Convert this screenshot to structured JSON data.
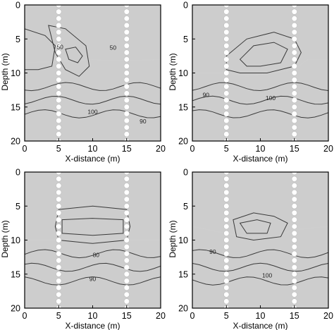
{
  "chart_data": [
    {
      "type": "heatmap",
      "panel": "top-left",
      "xlabel": "X-distance (m)",
      "ylabel": "Depth (m)",
      "xlim": [
        0,
        20
      ],
      "ylim": [
        0,
        20
      ],
      "y_inverted": true,
      "x_ticks": [
        "0",
        "5",
        "10",
        "15",
        "20"
      ],
      "y_ticks": [
        "0",
        "5",
        "10",
        "15",
        "20"
      ],
      "boreholes_x": [
        5,
        15
      ],
      "contour_labels": [
        {
          "text": "50",
          "x": 5.2,
          "y": 6.5
        },
        {
          "text": "50",
          "x": 13.0,
          "y": 6.6
        },
        {
          "text": "100",
          "x": 10.0,
          "y": 16.0
        },
        {
          "text": "90",
          "x": 17.4,
          "y": 17.4
        }
      ],
      "levels": [
        {
          "role": "upper",
          "tone": "#8f8f8f",
          "points": [
            [
              0,
              0
            ],
            [
              20,
              0
            ],
            [
              20,
              8
            ],
            [
              15,
              8.2
            ],
            [
              12,
              8.2
            ],
            [
              10,
              8
            ],
            [
              5,
              8.3
            ],
            [
              0,
              8.5
            ]
          ]
        },
        {
          "role": "low",
          "tone": "#5c5c5c",
          "points": [
            [
              0,
              3.5
            ],
            [
              3,
              4.5
            ],
            [
              4.5,
              6
            ],
            [
              4,
              9
            ],
            [
              2,
              9.5
            ],
            [
              0,
              9.5
            ]
          ]
        },
        {
          "role": "low",
          "tone": "#6d6d6d",
          "points": [
            [
              3.5,
              3
            ],
            [
              6,
              3.5
            ],
            [
              9,
              6
            ],
            [
              9.5,
              9
            ],
            [
              8,
              10.5
            ],
            [
              6,
              9.5
            ],
            [
              4.5,
              7
            ]
          ]
        },
        {
          "role": "min",
          "tone": "#1e1e1e",
          "points": [
            [
              6,
              6.5
            ],
            [
              7.5,
              6.2
            ],
            [
              8.5,
              7.5
            ],
            [
              7.8,
              8.5
            ],
            [
              6.5,
              8
            ]
          ]
        }
      ]
    },
    {
      "type": "heatmap",
      "panel": "top-right",
      "xlabel": "X-distance (m)",
      "ylabel": "Depth (m)",
      "xlim": [
        0,
        20
      ],
      "ylim": [
        0,
        20
      ],
      "y_inverted": true,
      "x_ticks": [
        "0",
        "5",
        "10",
        "15",
        "20"
      ],
      "y_ticks": [
        "0",
        "5",
        "10",
        "15",
        "20"
      ],
      "boreholes_x": [
        5,
        15
      ],
      "contour_labels": [
        {
          "text": "90",
          "x": 2.0,
          "y": 13.5
        },
        {
          "text": "100",
          "x": 11.5,
          "y": 14.0
        }
      ],
      "levels": [
        {
          "role": "upper",
          "tone": "#8f8f8f",
          "points": [
            [
              0,
              0
            ],
            [
              20,
              0
            ],
            [
              20,
              8
            ],
            [
              17,
              8
            ],
            [
              15,
              9.5
            ],
            [
              12,
              10
            ],
            [
              8,
              10.5
            ],
            [
              5,
              10
            ],
            [
              0,
              10
            ]
          ]
        },
        {
          "role": "low",
          "tone": "#6a6a6a",
          "points": [
            [
              5,
              7.5
            ],
            [
              8,
              5
            ],
            [
              12,
              4
            ],
            [
              15,
              5
            ],
            [
              16,
              7
            ],
            [
              15,
              9
            ],
            [
              11,
              10
            ],
            [
              7,
              10
            ],
            [
              5,
              9.5
            ]
          ]
        },
        {
          "role": "min",
          "tone": "#1e1e1e",
          "points": [
            [
              7,
              8
            ],
            [
              9,
              6
            ],
            [
              12,
              5.5
            ],
            [
              14,
              6.5
            ],
            [
              13,
              8.5
            ],
            [
              10,
              9
            ],
            [
              8,
              9
            ]
          ]
        }
      ]
    },
    {
      "type": "heatmap",
      "panel": "bottom-left",
      "xlabel": "X-distance (m)",
      "ylabel": "Depth (m)",
      "xlim": [
        0,
        20
      ],
      "ylim": [
        0,
        20
      ],
      "y_inverted": true,
      "x_ticks": [
        "0",
        "5",
        "10",
        "15",
        "20"
      ],
      "y_ticks": [
        "0",
        "5",
        "10",
        "15",
        "20"
      ],
      "boreholes_x": [
        5,
        15
      ],
      "contour_labels": [
        {
          "text": "80",
          "x": 10.5,
          "y": 12.5
        },
        {
          "text": "90",
          "x": 10.0,
          "y": 16.0
        }
      ],
      "levels": [
        {
          "role": "upper",
          "tone": "#8f8f8f",
          "points": [
            [
              0,
              0
            ],
            [
              20,
              0
            ],
            [
              20,
              10
            ],
            [
              15,
              10
            ],
            [
              10,
              10
            ],
            [
              5,
              10
            ],
            [
              0,
              10
            ]
          ]
        },
        {
          "role": "low",
          "tone": "#6a6a6a",
          "points": [
            [
              5,
              5.5
            ],
            [
              10,
              5
            ],
            [
              15,
              5.5
            ],
            [
              15.5,
              8
            ],
            [
              15,
              10
            ],
            [
              10,
              10.5
            ],
            [
              5,
              10
            ],
            [
              4.5,
              8
            ]
          ]
        },
        {
          "role": "min",
          "tone": "#141414",
          "points": [
            [
              5.5,
              7
            ],
            [
              10,
              6.8
            ],
            [
              14.5,
              7
            ],
            [
              14.5,
              9
            ],
            [
              10,
              9.3
            ],
            [
              5.5,
              9
            ]
          ]
        }
      ]
    },
    {
      "type": "heatmap",
      "panel": "bottom-right",
      "xlabel": "X-distance (m)",
      "ylabel": "Depth (m)",
      "xlim": [
        0,
        20
      ],
      "ylim": [
        0,
        20
      ],
      "y_inverted": true,
      "x_ticks": [
        "0",
        "5",
        "10",
        "15",
        "20"
      ],
      "y_ticks": [
        "0",
        "5",
        "10",
        "15",
        "20"
      ],
      "boreholes_x": [
        5,
        15
      ],
      "contour_labels": [
        {
          "text": "90",
          "x": 3.0,
          "y": 12.0
        },
        {
          "text": "100",
          "x": 11.0,
          "y": 15.5
        }
      ],
      "levels": [
        {
          "role": "upper",
          "tone": "#8f8f8f",
          "points": [
            [
              0,
              0
            ],
            [
              20,
              0
            ],
            [
              20,
              8
            ],
            [
              15,
              8.5
            ],
            [
              12,
              9.5
            ],
            [
              8,
              9.5
            ],
            [
              5,
              9
            ],
            [
              0,
              8
            ]
          ]
        },
        {
          "role": "low",
          "tone": "#6a6a6a",
          "points": [
            [
              6,
              7
            ],
            [
              9,
              6
            ],
            [
              12,
              6.5
            ],
            [
              14,
              7.5
            ],
            [
              13,
              9.5
            ],
            [
              9,
              10
            ],
            [
              6.5,
              9.5
            ]
          ]
        },
        {
          "role": "min",
          "tone": "#1e1e1e",
          "points": [
            [
              7,
              7.5
            ],
            [
              9.5,
              7
            ],
            [
              11.5,
              7.5
            ],
            [
              11,
              9
            ],
            [
              8,
              9
            ]
          ]
        }
      ]
    }
  ]
}
